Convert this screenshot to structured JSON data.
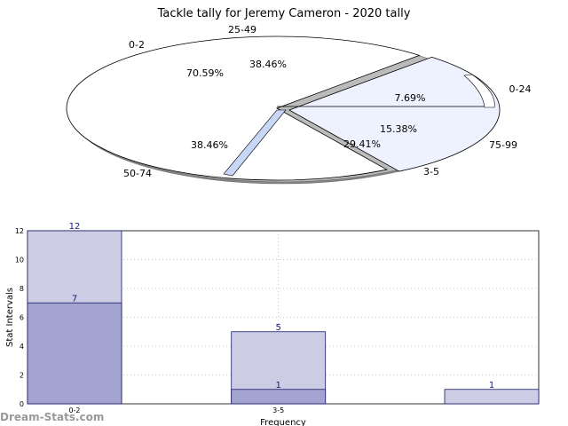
{
  "chart_data": [
    {
      "type": "pie",
      "title": "Tackle tally for Jeremy Cameron - 2020 tally",
      "rings": [
        {
          "name": "",
          "slices": [
            {
              "label": "0-2",
              "value": 70.59,
              "text": "70.59%"
            },
            {
              "label": "3-5",
              "value": 29.41,
              "text": "29.41%"
            }
          ]
        },
        {
          "name": "",
          "slices": [
            {
              "label": "25-49",
              "value": 38.46,
              "text": "38.46%"
            },
            {
              "label": "0-24",
              "value": 7.69,
              "text": "7.69%"
            },
            {
              "label": "75-99",
              "value": 15.38,
              "text": "15.38%"
            },
            {
              "label": "50-74",
              "value": 38.46,
              "text": "38.46%"
            }
          ]
        }
      ]
    },
    {
      "type": "bar",
      "title": "",
      "xlabel": "Frequency",
      "ylabel": "Stat Intervals",
      "ylim": [
        0,
        12
      ],
      "yticks": [
        0,
        2,
        4,
        6,
        8,
        10,
        12
      ],
      "categories": [
        "0-2",
        "3-5",
        ""
      ],
      "grid": true,
      "series": [
        {
          "values": [
            12,
            5,
            1
          ],
          "color": "#cccce4"
        },
        {
          "values": [
            7,
            1,
            0
          ],
          "color": "#a3a3d0"
        }
      ]
    }
  ],
  "watermark": "Dream-Stats.com"
}
